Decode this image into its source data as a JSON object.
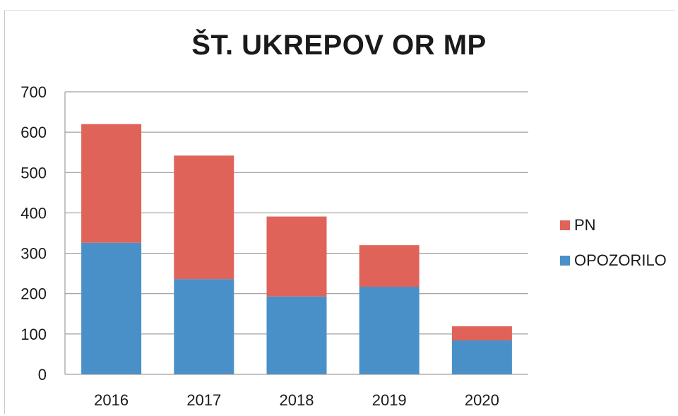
{
  "chart_data": {
    "type": "bar",
    "stacked": true,
    "title": "ŠT. UKREPOV OR MP",
    "categories": [
      "2016",
      "2017",
      "2018",
      "2019",
      "2020"
    ],
    "series": [
      {
        "name": "OPOZORILO",
        "values": [
          326,
          236,
          193,
          217,
          84
        ],
        "color": "#4a90c8"
      },
      {
        "name": "PN",
        "values": [
          294,
          306,
          198,
          103,
          35
        ],
        "color": "#e0635a"
      }
    ],
    "ylim": [
      0,
      700
    ],
    "yticks": [
      "0",
      "100",
      "200",
      "300",
      "400",
      "500",
      "600",
      "700"
    ],
    "grid": true,
    "legend": "right"
  }
}
